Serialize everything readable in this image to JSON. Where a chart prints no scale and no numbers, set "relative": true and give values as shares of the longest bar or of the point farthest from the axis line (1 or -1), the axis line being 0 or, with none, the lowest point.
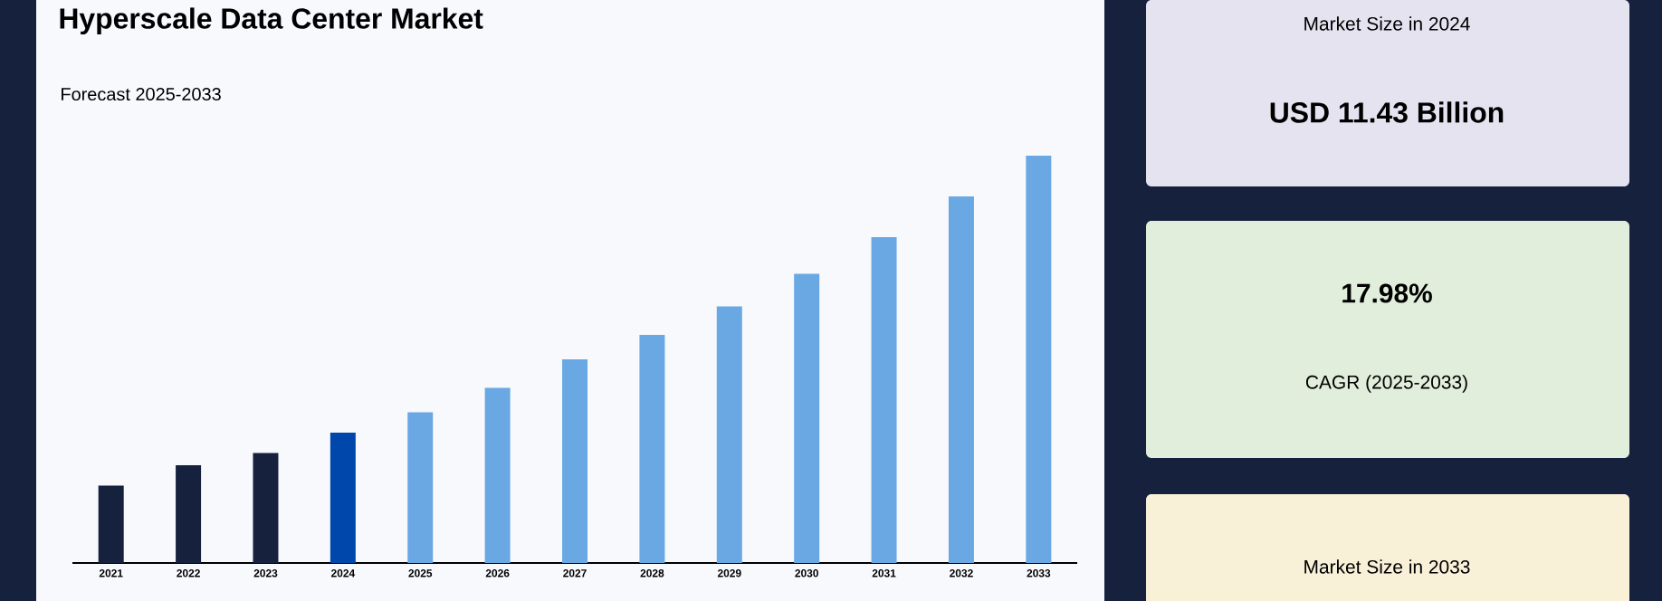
{
  "chart_data": [
    {
      "type": "bar",
      "title": "Hyperscale Data Center Market",
      "subtitle": "Forecast 2025-2033",
      "relative": true,
      "categories": [
        "2021",
        "2022",
        "2023",
        "2024",
        "2025",
        "2026",
        "2027",
        "2028",
        "2029",
        "2030",
        "2031",
        "2032",
        "2033"
      ],
      "values": [
        0.19,
        0.24,
        0.27,
        0.32,
        0.37,
        0.43,
        0.5,
        0.56,
        0.63,
        0.71,
        0.8,
        0.9,
        1.0
      ],
      "colors": [
        "#16213e",
        "#16213e",
        "#16213e",
        "#0047ab",
        "#6aa8e4",
        "#6aa8e4",
        "#6aa8e4",
        "#6aa8e4",
        "#6aa8e4",
        "#6aa8e4",
        "#6aa8e4",
        "#6aa8e4",
        "#6aa8e4"
      ]
    },
    {
      "type": "other",
      "annotations": [
        "Market Size in 2024",
        "USD 11.43 Billion",
        "17.98%",
        "CAGR (2025-2033)",
        "Market Size in 2033"
      ]
    }
  ]
}
